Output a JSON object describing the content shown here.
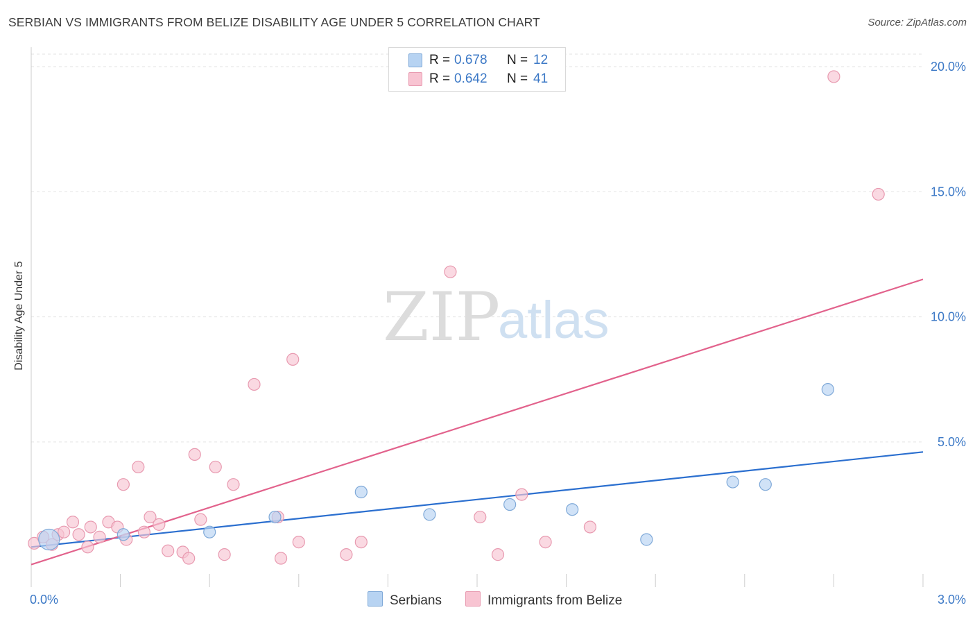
{
  "title": "SERBIAN VS IMMIGRANTS FROM BELIZE DISABILITY AGE UNDER 5 CORRELATION CHART",
  "source": "Source: ZipAtlas.com",
  "watermark": {
    "zip": "ZIP",
    "atlas": "atlas"
  },
  "legend": {
    "serbians": {
      "r_label": "R =",
      "r_value": "0.678",
      "n_label": "N =",
      "n_value": "12"
    },
    "belize": {
      "r_label": "R =",
      "r_value": "0.642",
      "n_label": "N =",
      "n_value": "41"
    }
  },
  "bottom_legend": {
    "serbians": "Serbians",
    "belize": "Immigrants from Belize"
  },
  "colors": {
    "serbians_fill": "#b7d3f2",
    "serbians_stroke": "#7fa9d8",
    "serbians_line": "#2b6fcf",
    "belize_fill": "#f8c4d2",
    "belize_stroke": "#e89ab0",
    "belize_line": "#e2628c",
    "grid": "#e3e3e3",
    "tick": "#3b78c6"
  },
  "chart_data": {
    "type": "scatter",
    "title": "SERBIAN VS IMMIGRANTS FROM BELIZE DISABILITY AGE UNDER 5 CORRELATION CHART",
    "xlabel": "",
    "ylabel": "Disability Age Under 5",
    "xlim": [
      0,
      3.0
    ],
    "ylim": [
      -0.8,
      20.5
    ],
    "x_tick_labels": [
      {
        "value": 0,
        "label": "0.0%"
      },
      {
        "value": 3.0,
        "label": "3.0%"
      }
    ],
    "y_tick_labels": [
      {
        "value": 5,
        "label": "5.0%"
      },
      {
        "value": 10,
        "label": "10.0%"
      },
      {
        "value": 15,
        "label": "15.0%"
      },
      {
        "value": 20,
        "label": "20.0%"
      }
    ],
    "series": [
      {
        "name": "Serbians",
        "points": [
          {
            "x": 0.06,
            "y": 1.1,
            "big": true
          },
          {
            "x": 0.31,
            "y": 1.3
          },
          {
            "x": 0.6,
            "y": 1.4
          },
          {
            "x": 0.82,
            "y": 2.0
          },
          {
            "x": 1.11,
            "y": 3.0
          },
          {
            "x": 1.34,
            "y": 2.1
          },
          {
            "x": 1.61,
            "y": 2.5
          },
          {
            "x": 1.82,
            "y": 2.3
          },
          {
            "x": 2.07,
            "y": 1.1
          },
          {
            "x": 2.36,
            "y": 3.4
          },
          {
            "x": 2.47,
            "y": 3.3
          },
          {
            "x": 2.68,
            "y": 7.1
          }
        ],
        "trend": {
          "x": [
            0,
            3.0
          ],
          "y": [
            0.8,
            4.6
          ]
        }
      },
      {
        "name": "Immigrants from Belize",
        "points": [
          {
            "x": 0.01,
            "y": 0.95
          },
          {
            "x": 0.04,
            "y": 1.2
          },
          {
            "x": 0.07,
            "y": 0.9
          },
          {
            "x": 0.09,
            "y": 1.3
          },
          {
            "x": 0.11,
            "y": 1.4
          },
          {
            "x": 0.14,
            "y": 1.8
          },
          {
            "x": 0.16,
            "y": 1.3
          },
          {
            "x": 0.19,
            "y": 0.8
          },
          {
            "x": 0.2,
            "y": 1.6
          },
          {
            "x": 0.23,
            "y": 1.2
          },
          {
            "x": 0.26,
            "y": 1.8
          },
          {
            "x": 0.29,
            "y": 1.6
          },
          {
            "x": 0.31,
            "y": 3.3
          },
          {
            "x": 0.32,
            "y": 1.1
          },
          {
            "x": 0.36,
            "y": 4.0
          },
          {
            "x": 0.38,
            "y": 1.4
          },
          {
            "x": 0.4,
            "y": 2.0
          },
          {
            "x": 0.43,
            "y": 1.7
          },
          {
            "x": 0.46,
            "y": 0.65
          },
          {
            "x": 0.51,
            "y": 0.6
          },
          {
            "x": 0.53,
            "y": 0.35
          },
          {
            "x": 0.55,
            "y": 4.5
          },
          {
            "x": 0.57,
            "y": 1.9
          },
          {
            "x": 0.62,
            "y": 4.0
          },
          {
            "x": 0.65,
            "y": 0.5
          },
          {
            "x": 0.68,
            "y": 3.3
          },
          {
            "x": 0.75,
            "y": 7.3
          },
          {
            "x": 0.83,
            "y": 2.0
          },
          {
            "x": 0.84,
            "y": 0.35
          },
          {
            "x": 0.88,
            "y": 8.3
          },
          {
            "x": 0.9,
            "y": 1.0
          },
          {
            "x": 1.06,
            "y": 0.5
          },
          {
            "x": 1.11,
            "y": 1.0
          },
          {
            "x": 1.41,
            "y": 11.8
          },
          {
            "x": 1.51,
            "y": 2.0
          },
          {
            "x": 1.57,
            "y": 0.5
          },
          {
            "x": 1.65,
            "y": 2.9
          },
          {
            "x": 1.73,
            "y": 1.0
          },
          {
            "x": 1.88,
            "y": 1.6
          },
          {
            "x": 2.7,
            "y": 19.6
          },
          {
            "x": 2.85,
            "y": 14.9
          }
        ],
        "trend": {
          "x": [
            0,
            3.0
          ],
          "y": [
            0.1,
            11.5
          ]
        }
      }
    ]
  }
}
